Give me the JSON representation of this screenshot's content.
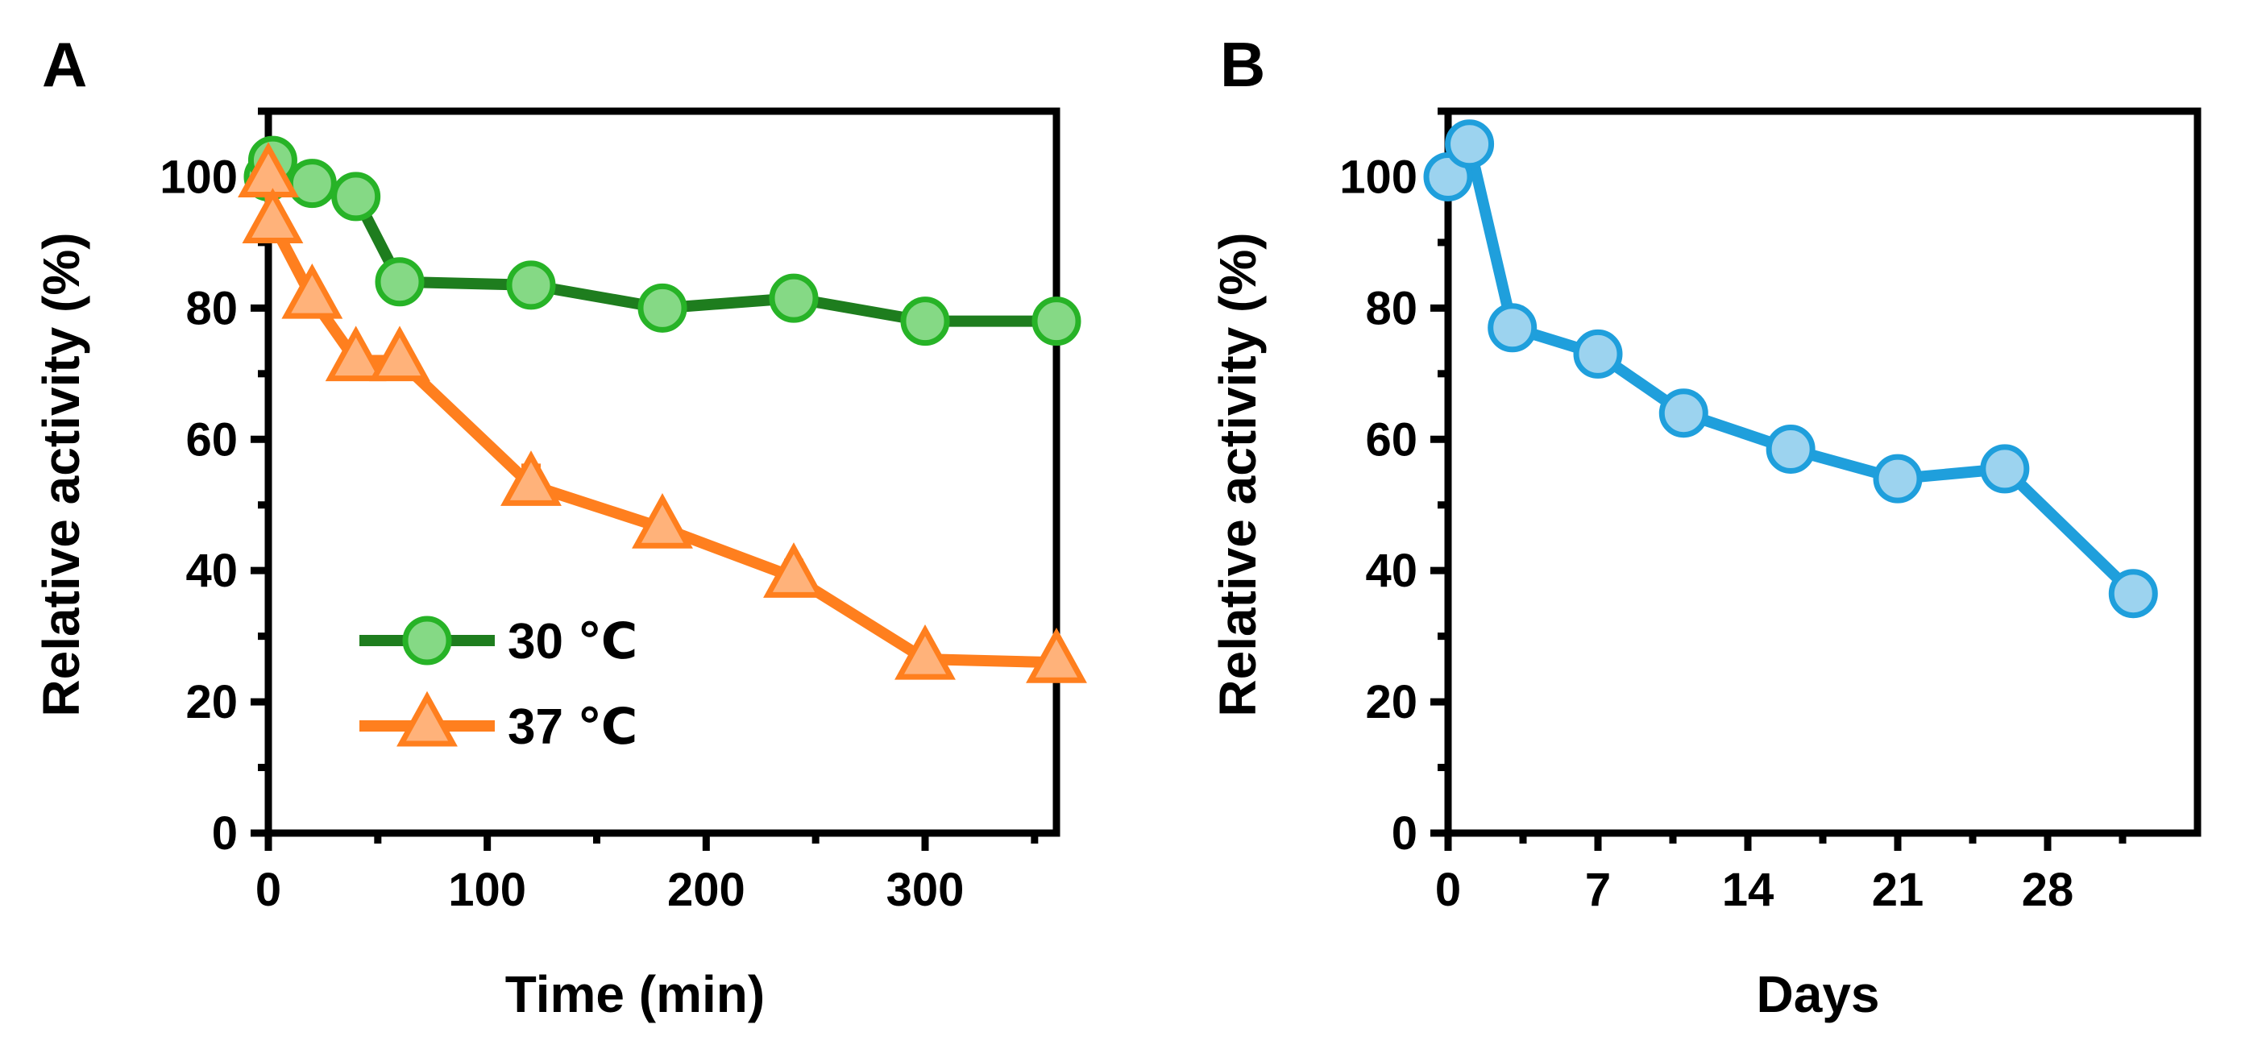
{
  "chart_data": [
    {
      "panel": "A",
      "type": "line",
      "xlabel": "Time (min)",
      "ylabel": "Relative activity (%)",
      "xlim": [
        0,
        360
      ],
      "ylim": [
        0,
        110
      ],
      "xticks": [
        0,
        100,
        200,
        300
      ],
      "xminor": [
        50,
        150,
        250,
        350
      ],
      "yticks": [
        0,
        20,
        40,
        60,
        80,
        100
      ],
      "yminor": [
        10,
        30,
        50,
        70,
        90,
        110
      ],
      "grid": false,
      "legend_position": "lower-left",
      "series": [
        {
          "name": "30 ℃",
          "marker": "circle",
          "color": "#1E7D1E",
          "marker_edge": "#27B327",
          "marker_fill": "#85D985",
          "x": [
            0,
            2,
            20,
            40,
            60,
            120,
            180,
            240,
            300,
            360
          ],
          "y": [
            100,
            102.5,
            99,
            97,
            84,
            83.5,
            80,
            81.5,
            78,
            78
          ],
          "err": [
            1.5,
            1.5,
            1.5,
            2.5,
            1.5,
            1.5,
            2,
            1.5,
            1.5,
            1
          ]
        },
        {
          "name": "37 ℃",
          "marker": "triangle",
          "color": "#FF7F1E",
          "marker_edge": "#FF7F1E",
          "marker_fill": "#FFB27A",
          "x": [
            0,
            2,
            20,
            40,
            60,
            120,
            180,
            240,
            300,
            360
          ],
          "y": [
            100,
            93,
            81.5,
            72,
            72,
            53,
            46.5,
            39,
            26.5,
            26
          ],
          "err": [
            1.5,
            1.5,
            2,
            2,
            2,
            3,
            1.5,
            2.5,
            1.5,
            1
          ]
        }
      ]
    },
    {
      "panel": "B",
      "type": "line",
      "xlabel": "Days",
      "ylabel": "Relative activity (%)",
      "xlim": [
        0,
        35
      ],
      "ylim": [
        0,
        110
      ],
      "xticks": [
        0,
        7,
        14,
        21,
        28
      ],
      "xminor": [
        3.5,
        10.5,
        17.5,
        24.5,
        31.5
      ],
      "yticks": [
        0,
        20,
        40,
        60,
        80,
        100
      ],
      "yminor": [
        10,
        30,
        50,
        70,
        90,
        110
      ],
      "grid": false,
      "series": [
        {
          "name": "Days",
          "marker": "circle",
          "color": "#1F9FDC",
          "marker_edge": "#1F9FDC",
          "marker_fill": "#9CD3EF",
          "x": [
            0,
            1,
            3,
            7,
            11,
            16,
            21,
            26,
            32
          ],
          "y": [
            100,
            105,
            77,
            73,
            64,
            58.5,
            54,
            55.5,
            36.5
          ],
          "err": [
            1.5,
            1.5,
            1.5,
            1.5,
            2,
            2,
            1.5,
            1.5,
            2.5
          ]
        }
      ]
    }
  ]
}
